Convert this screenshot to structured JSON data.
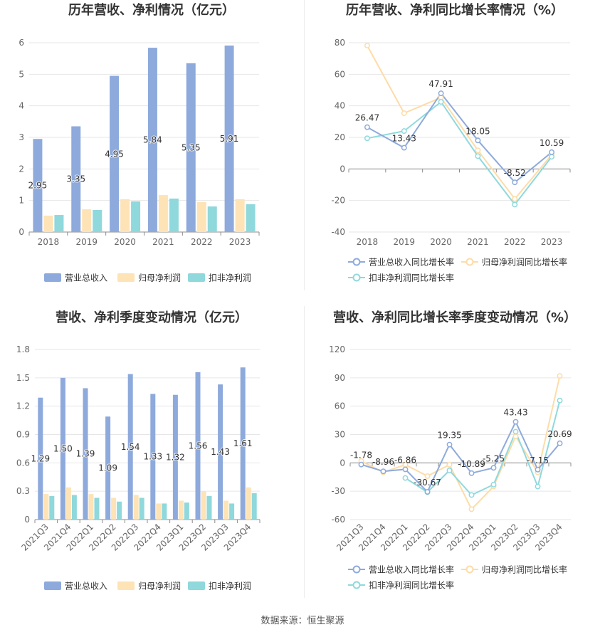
{
  "footer": {
    "source": "数据来源：恒生聚源"
  },
  "chart_data": [
    {
      "type": "bar",
      "title": "历年营收、净利情况（亿元）",
      "categories": [
        "2018",
        "2019",
        "2020",
        "2021",
        "2022",
        "2023"
      ],
      "series": [
        {
          "name": "营业总收入",
          "color": "#8eaadc",
          "values": [
            2.95,
            3.35,
            4.95,
            5.84,
            5.35,
            5.91
          ],
          "data_labels": [
            "2.95",
            "3.35",
            "4.95",
            "5.84",
            "5.35",
            "5.91"
          ]
        },
        {
          "name": "归母净利润",
          "color": "#fde3b6",
          "values": [
            0.52,
            0.72,
            1.04,
            1.17,
            0.95,
            1.04
          ]
        },
        {
          "name": "扣非净利润",
          "color": "#8fd8dc",
          "values": [
            0.54,
            0.7,
            0.97,
            1.06,
            0.81,
            0.88
          ]
        }
      ],
      "ylim": [
        0,
        6
      ],
      "yticks": [
        "0",
        "1",
        "2",
        "3",
        "4",
        "5",
        "6"
      ],
      "grid": true,
      "legend": "bottom"
    },
    {
      "type": "line",
      "title": "历年营收、净利同比增长率情况（%）",
      "categories": [
        "2018",
        "2019",
        "2020",
        "2021",
        "2022",
        "2023"
      ],
      "series": [
        {
          "name": "营业总收入同比增长率",
          "color": "#8eaadc",
          "values": [
            26.47,
            13.43,
            47.91,
            18.05,
            -8.52,
            10.59
          ],
          "data_labels": [
            "26.47",
            "13.43",
            "47.91",
            "18.05",
            "-8.52",
            "10.59"
          ]
        },
        {
          "name": "归母净利润同比增长率",
          "color": "#fddca8",
          "values": [
            78.2,
            35.3,
            45.2,
            11.8,
            -19.0,
            9.0
          ]
        },
        {
          "name": "扣非净利润同比增长率",
          "color": "#8fd9dd",
          "values": [
            19.4,
            24.0,
            42.5,
            8.1,
            -22.6,
            7.7
          ]
        }
      ],
      "ylim": [
        -40,
        80
      ],
      "yticks": [
        "-40",
        "-20",
        "0",
        "20",
        "40",
        "60",
        "80"
      ],
      "grid": true,
      "legend": "bottom"
    },
    {
      "type": "bar",
      "title": "营收、净利季度变动情况（亿元）",
      "categories": [
        "2021Q3",
        "2021Q4",
        "2022Q1",
        "2022Q2",
        "2022Q3",
        "2022Q4",
        "2023Q1",
        "2023Q2",
        "2023Q3",
        "2023Q4"
      ],
      "series": [
        {
          "name": "营业总收入",
          "color": "#8eaadc",
          "values": [
            1.29,
            1.5,
            1.39,
            1.09,
            1.54,
            1.33,
            1.32,
            1.56,
            1.43,
            1.61
          ],
          "data_labels": [
            "1.29",
            "1.50",
            "1.39",
            "1.09",
            "1.54",
            "1.33",
            "1.32",
            "1.56",
            "1.43",
            "1.61"
          ]
        },
        {
          "name": "归母净利润",
          "color": "#fde3b6",
          "values": [
            0.27,
            0.34,
            0.27,
            0.23,
            0.26,
            0.17,
            0.2,
            0.3,
            0.2,
            0.34
          ]
        },
        {
          "name": "扣非净利润",
          "color": "#8fd8dc",
          "values": [
            0.25,
            0.26,
            0.23,
            0.19,
            0.23,
            0.17,
            0.18,
            0.25,
            0.17,
            0.28
          ]
        }
      ],
      "ylim": [
        0,
        1.8
      ],
      "yticks": [
        "0",
        "0.3",
        "0.6",
        "0.9",
        "1.2",
        "1.5",
        "1.8"
      ],
      "grid": true,
      "legend": "bottom"
    },
    {
      "type": "line",
      "title": "营收、净利同比增长率季度变动情况（%）",
      "categories": [
        "2021Q3",
        "2021Q4",
        "2022Q1",
        "2022Q2",
        "2022Q3",
        "2022Q4",
        "2023Q1",
        "2023Q2",
        "2023Q3",
        "2023Q4"
      ],
      "series": [
        {
          "name": "营业总收入同比增长率",
          "color": "#8eaadc",
          "values": [
            -1.78,
            -8.96,
            -6.86,
            -30.67,
            19.35,
            -10.89,
            -5.25,
            43.43,
            -7.15,
            20.69
          ],
          "data_labels": [
            "-1.78",
            "-8.96",
            "-6.86",
            "-30.67",
            "19.35",
            "-10.89",
            "-5.25",
            "43.43",
            "-7.15",
            "20.69"
          ]
        },
        {
          "name": "归母净利润同比增长率",
          "color": "#fddca8",
          "values": [
            2,
            -10,
            -2,
            -14,
            -2,
            -49,
            -25,
            28,
            -10,
            92
          ]
        },
        {
          "name": "扣非净利润同比增长率",
          "color": "#8fd9dd",
          "values": [
            null,
            null,
            -16,
            -31,
            -8,
            -34,
            -23,
            33,
            -25,
            66
          ]
        }
      ],
      "ylim": [
        -60,
        120
      ],
      "yticks": [
        "-60",
        "-30",
        "0",
        "30",
        "60",
        "90",
        "120"
      ],
      "grid": true,
      "legend": "bottom"
    }
  ]
}
